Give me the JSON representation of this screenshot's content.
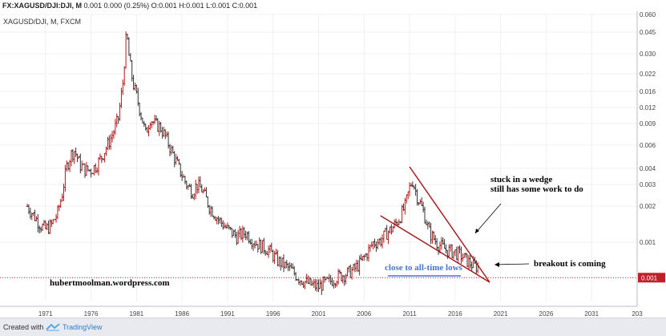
{
  "header": {
    "symbol": "FX:XAGUSD/DJI:DJI, M",
    "values": "0.001 0.000 (0.25%) O:0.001 H:0.001 L:0.001 C:0.001"
  },
  "footer": {
    "created_with": "Created with",
    "brand": "TradingView"
  },
  "colors": {
    "up": "#b31b1b",
    "down": "#333333",
    "wedge": "#a41e1e",
    "level": "#c0202a",
    "blue": "#4a74c9"
  },
  "chart_data": {
    "type": "line",
    "title": "XAGUSD/DJI, M, FXCM",
    "xlabel": "",
    "ylabel": "",
    "x_ticks": [
      "1971",
      "1976",
      "1981",
      "1986",
      "1991",
      "1996",
      "2001",
      "2006",
      "2011",
      "2016",
      "2021",
      "2026",
      "2031",
      "203"
    ],
    "y_ticks": [
      "0.060",
      "0.045",
      "0.030",
      "0.022",
      "0.016",
      "0.012",
      "0.009",
      "0.006",
      "0.004",
      "0.003",
      "0.002",
      "0.001"
    ],
    "y_scale": "log",
    "xlim": [
      1966,
      2036
    ],
    "series": [
      {
        "x": [
          1969.0,
          1969.8,
          1970.5,
          1971.0,
          1971.6,
          1972.3,
          1972.8,
          1973.3,
          1973.8,
          1974.2,
          1974.8,
          1975.4,
          1976.0,
          1976.6,
          1977.2,
          1977.8,
          1978.4,
          1979.0,
          1979.5,
          1979.9,
          1980.2,
          1980.6,
          1981.0,
          1981.6,
          1982.0,
          1982.5,
          1983.0,
          1983.6,
          1984.2,
          1985.0,
          1985.8,
          1986.6,
          1987.2,
          1987.6,
          1988.2,
          1989.0,
          1990.0,
          1991.0,
          1992.0,
          1993.0,
          1993.8,
          1994.5,
          1995.5,
          1996.5,
          1997.5,
          1998.0,
          1998.8,
          1999.5,
          2000.3,
          2001.0,
          2001.5,
          2002.2,
          2003.0,
          2004.0,
          2004.8,
          2005.5,
          2006.2,
          2007.0,
          2007.8,
          2008.5,
          2009.0,
          2009.8,
          2010.5,
          2011.0,
          2011.3,
          2011.8,
          2012.5,
          2013.2,
          2014.0,
          2015.0,
          2016.0,
          2016.6,
          2017.3,
          2018.0,
          2018.6
        ],
        "y": [
          0.0025,
          0.0021,
          0.0018,
          0.0017,
          0.0018,
          0.0022,
          0.003,
          0.0048,
          0.006,
          0.0064,
          0.005,
          0.0046,
          0.0046,
          0.005,
          0.0058,
          0.007,
          0.0085,
          0.011,
          0.02,
          0.047,
          0.03,
          0.02,
          0.016,
          0.011,
          0.0085,
          0.011,
          0.01,
          0.0095,
          0.008,
          0.006,
          0.0045,
          0.0035,
          0.0032,
          0.0036,
          0.0033,
          0.0025,
          0.002,
          0.0017,
          0.0015,
          0.0016,
          0.0014,
          0.0013,
          0.0012,
          0.001,
          0.0009,
          0.00085,
          0.00075,
          0.0007,
          0.00066,
          0.00064,
          0.00068,
          0.0007,
          0.00076,
          0.0008,
          0.00085,
          0.00095,
          0.0011,
          0.00135,
          0.0014,
          0.0016,
          0.0017,
          0.002,
          0.0025,
          0.0034,
          0.0039,
          0.003,
          0.0023,
          0.0016,
          0.00135,
          0.0012,
          0.00115,
          0.0011,
          0.001,
          0.00092,
          0.0009
        ]
      }
    ],
    "current_value": 0.001,
    "current_value_label": "0.001",
    "watermark": "hubertmoolman.wordpress.com",
    "annotations": [
      {
        "id": "wedge",
        "text": [
          "stuck in a wedge",
          "still has some work to do"
        ]
      },
      {
        "id": "breakout",
        "text": "breakout is coming"
      },
      {
        "id": "lows",
        "text": "close to all-time lows"
      }
    ],
    "wedge": {
      "upper": [
        [
          2011.0,
          0.0042
        ],
        [
          2019.8,
          0.00072
        ]
      ],
      "lower": [
        [
          2007.8,
          0.0023
        ],
        [
          2019.8,
          0.00072
        ]
      ]
    },
    "grid": true
  }
}
